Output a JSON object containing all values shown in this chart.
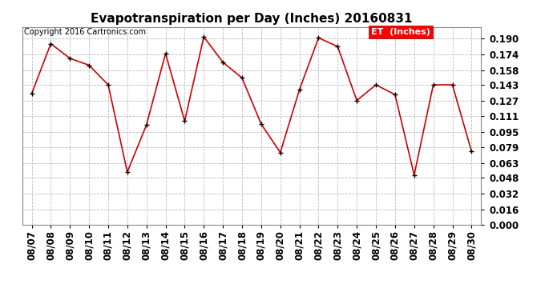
{
  "title": "Evapotranspiration per Day (Inches) 20160831",
  "copyright": "Copyright 2016 Cartronics.com",
  "legend_label": "ET  (Inches)",
  "dates": [
    "08/07",
    "08/08",
    "08/09",
    "08/10",
    "08/11",
    "08/12",
    "08/13",
    "08/14",
    "08/15",
    "08/16",
    "08/17",
    "08/18",
    "08/19",
    "08/20",
    "08/21",
    "08/22",
    "08/23",
    "08/24",
    "08/25",
    "08/26",
    "08/27",
    "08/28",
    "08/29",
    "08/30"
  ],
  "values": [
    0.134,
    0.185,
    0.17,
    0.163,
    0.143,
    0.054,
    0.102,
    0.175,
    0.106,
    0.192,
    0.166,
    0.15,
    0.103,
    0.074,
    0.138,
    0.191,
    0.182,
    0.127,
    0.143,
    0.133,
    0.051,
    0.143,
    0.143,
    0.075
  ],
  "line_color": "#cc0000",
  "marker_color": "#000000",
  "bg_color": "#ffffff",
  "grid_color": "#bbbbbb",
  "ylim": [
    0.0,
    0.202
  ],
  "yticks": [
    0.0,
    0.016,
    0.032,
    0.048,
    0.063,
    0.079,
    0.095,
    0.111,
    0.127,
    0.143,
    0.158,
    0.174,
    0.19
  ],
  "title_fontsize": 11,
  "copyright_fontsize": 7,
  "legend_fontsize": 8,
  "tick_fontsize": 8.5
}
